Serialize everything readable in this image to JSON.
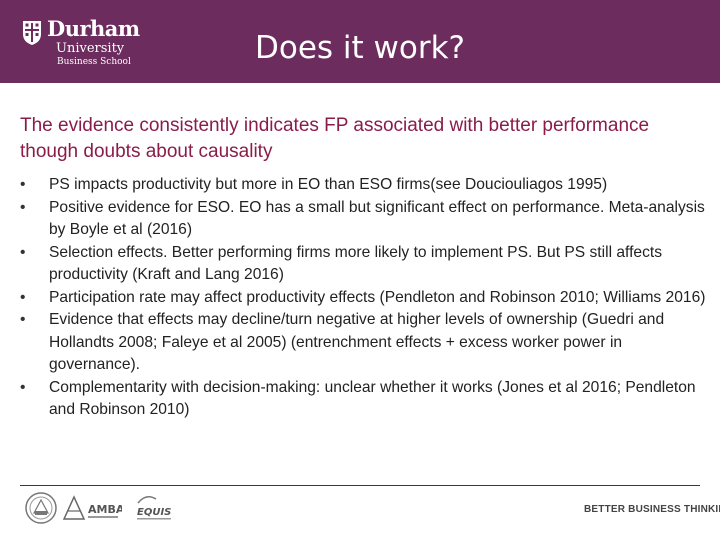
{
  "header": {
    "logo": {
      "name": "Durham",
      "line2": "University",
      "line3": "Business School"
    },
    "title": "Does it work?"
  },
  "main": {
    "subtitle": "The evidence consistently indicates FP associated with better performance though doubts about causality",
    "bullets": [
      "PS impacts productivity but more in EO than ESO firms(see Douciouliagos 1995)",
      "Positive evidence for ESO.  EO has a small but significant effect on performance.  Meta-analysis by Boyle et al (2016)",
      "Selection effects.  Better performing firms more likely to implement PS.  But PS still affects productivity (Kraft and Lang 2016)",
      "Participation rate may affect productivity effects (Pendleton and Robinson 2010; Williams 2016)",
      "Evidence that effects may decline/turn negative at higher levels of ownership (Guedri and Hollandts 2008; Faleye et al 2005) (entrenchment effects + excess worker power in governance).",
      "Complementarity with decision-making: unclear whether it works (Jones et al 2016; Pendleton and Robinson 2010)"
    ]
  },
  "footer": {
    "logos": [
      "AACSB",
      "AMBA",
      "EQUIS"
    ],
    "amba_text": "AMBA",
    "equis_text": "EQUIS",
    "tagline": "BETTER BUSINESS THINKING"
  },
  "colors": {
    "header_bg": "#6c2c5e",
    "subtitle": "#8a1c4a"
  }
}
